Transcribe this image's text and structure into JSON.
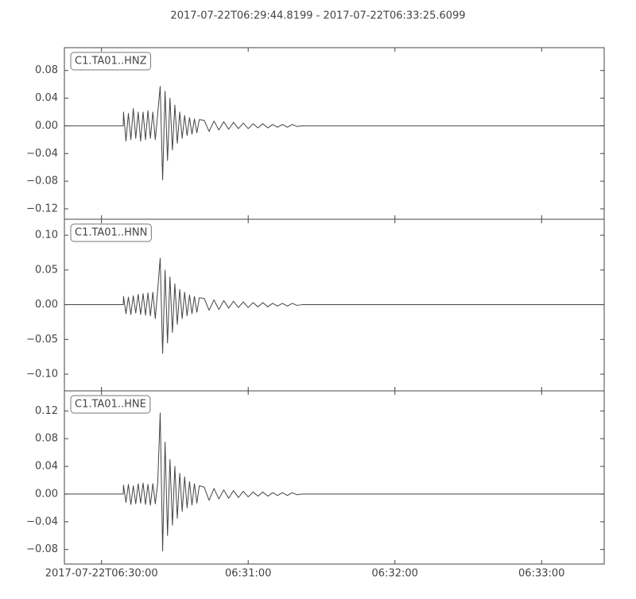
{
  "chart_data": [
    {
      "type": "line",
      "title": "2017-07-22T06:29:44.8199  -  2017-07-22T06:33:25.6099",
      "xlim": [
        "06:29:44.8199",
        "06:33:25.6099"
      ],
      "ylim": [
        -0.135,
        0.113
      ],
      "yticks": [
        {
          "value": 0.08,
          "label": "0.08"
        },
        {
          "value": 0.04,
          "label": "0.04"
        },
        {
          "value": 0,
          "label": "0.00"
        },
        {
          "value": -0.04,
          "label": "−0.04"
        },
        {
          "value": -0.08,
          "label": "−0.08"
        },
        {
          "value": -0.12,
          "label": "−0.12"
        }
      ],
      "x": [
        "06:29:44.8199",
        "06:30:08.9",
        "06:30:09",
        "06:30:10",
        "06:30:11",
        "06:30:12",
        "06:30:13",
        "06:30:14",
        "06:30:15",
        "06:30:16",
        "06:30:17",
        "06:30:18",
        "06:30:19",
        "06:30:20",
        "06:30:21",
        "06:30:22",
        "06:30:23",
        "06:30:24",
        "06:30:25",
        "06:30:26",
        "06:30:27",
        "06:30:28",
        "06:30:29",
        "06:30:30",
        "06:30:31",
        "06:30:32",
        "06:30:33",
        "06:30:34",
        "06:30:35",
        "06:30:36",
        "06:30:37",
        "06:30:38",
        "06:30:39",
        "06:30:40",
        "06:30:42",
        "06:30:44",
        "06:30:46",
        "06:30:48",
        "06:30:50",
        "06:30:52",
        "06:30:54",
        "06:30:56",
        "06:30:58",
        "06:31:00",
        "06:31:02",
        "06:31:04",
        "06:31:06",
        "06:31:08",
        "06:31:10",
        "06:31:12",
        "06:31:14",
        "06:31:16",
        "06:31:18",
        "06:31:20",
        "06:31:22",
        "06:33:25.6099"
      ],
      "series": [
        {
          "name": "C1.TA01..HNZ",
          "color": "#444444",
          "values": [
            0,
            0,
            0.02,
            -0.022,
            0.018,
            -0.02,
            0.025,
            -0.018,
            0.02,
            -0.022,
            0.02,
            -0.02,
            0.022,
            -0.018,
            0.02,
            -0.02,
            0.018,
            0.057,
            -0.078,
            0.05,
            -0.05,
            0.04,
            -0.035,
            0.03,
            -0.025,
            0.02,
            -0.018,
            0.015,
            -0.014,
            0.012,
            -0.012,
            0.01,
            -0.01,
            0.009,
            0.008,
            -0.008,
            0.007,
            -0.006,
            0.006,
            -0.005,
            0.005,
            -0.004,
            0.004,
            -0.004,
            0.003,
            -0.003,
            0.003,
            -0.003,
            0.002,
            -0.002,
            0.002,
            -0.002,
            0.002,
            -0.001,
            0,
            0
          ]
        }
      ]
    },
    {
      "type": "line",
      "xlim": [
        "06:29:44.8199",
        "06:33:25.6099"
      ],
      "ylim": [
        -0.124,
        0.123
      ],
      "yticks": [
        {
          "value": 0.1,
          "label": "0.10"
        },
        {
          "value": 0.05,
          "label": "0.05"
        },
        {
          "value": 0,
          "label": "0.00"
        },
        {
          "value": -0.05,
          "label": "−0.05"
        },
        {
          "value": -0.1,
          "label": "−0.10"
        }
      ],
      "x": [
        "06:29:44.8199",
        "06:30:08.9",
        "06:30:09",
        "06:30:10",
        "06:30:11",
        "06:30:12",
        "06:30:13",
        "06:30:14",
        "06:30:15",
        "06:30:16",
        "06:30:17",
        "06:30:18",
        "06:30:19",
        "06:30:20",
        "06:30:21",
        "06:30:22",
        "06:30:23",
        "06:30:24",
        "06:30:25",
        "06:30:26",
        "06:30:27",
        "06:30:28",
        "06:30:29",
        "06:30:30",
        "06:30:31",
        "06:30:32",
        "06:30:33",
        "06:30:34",
        "06:30:35",
        "06:30:36",
        "06:30:37",
        "06:30:38",
        "06:30:39",
        "06:30:40",
        "06:30:42",
        "06:30:44",
        "06:30:46",
        "06:30:48",
        "06:30:50",
        "06:30:52",
        "06:30:54",
        "06:30:56",
        "06:30:58",
        "06:31:00",
        "06:31:02",
        "06:31:04",
        "06:31:06",
        "06:31:08",
        "06:31:10",
        "06:31:12",
        "06:31:14",
        "06:31:16",
        "06:31:18",
        "06:31:20",
        "06:31:22",
        "06:33:25.6099"
      ],
      "series": [
        {
          "name": "C1.TA01..HNN",
          "color": "#444444",
          "values": [
            0,
            0,
            0.012,
            -0.013,
            0.011,
            -0.014,
            0.013,
            -0.012,
            0.015,
            -0.014,
            0.016,
            -0.015,
            0.017,
            -0.016,
            0.018,
            -0.02,
            0.022,
            0.067,
            -0.07,
            0.05,
            -0.055,
            0.04,
            -0.04,
            0.03,
            -0.028,
            0.022,
            -0.02,
            0.018,
            -0.016,
            0.014,
            -0.013,
            0.012,
            -0.011,
            0.01,
            0.009,
            -0.008,
            0.007,
            -0.007,
            0.006,
            -0.005,
            0.005,
            -0.004,
            0.004,
            -0.004,
            0.003,
            -0.003,
            0.003,
            -0.003,
            0.002,
            -0.002,
            0.002,
            -0.002,
            0.002,
            -0.001,
            0,
            0
          ]
        }
      ]
    },
    {
      "type": "line",
      "xlim": [
        "06:29:44.8199",
        "06:33:25.6099"
      ],
      "ylim": [
        -0.101,
        0.149
      ],
      "yticks": [
        {
          "value": 0.12,
          "label": "0.12"
        },
        {
          "value": 0.08,
          "label": "0.08"
        },
        {
          "value": 0.04,
          "label": "0.04"
        },
        {
          "value": 0,
          "label": "0.00"
        },
        {
          "value": -0.04,
          "label": "−0.04"
        },
        {
          "value": -0.08,
          "label": "−0.08"
        }
      ],
      "xticks": [
        {
          "value": "06:30:00",
          "label": "2017-07-22T06:30:00"
        },
        {
          "value": "06:31:00",
          "label": "06:31:00"
        },
        {
          "value": "06:32:00",
          "label": "06:32:00"
        },
        {
          "value": "06:33:00",
          "label": "06:33:00"
        }
      ],
      "x": [
        "06:29:44.8199",
        "06:30:08.9",
        "06:30:09",
        "06:30:10",
        "06:30:11",
        "06:30:12",
        "06:30:13",
        "06:30:14",
        "06:30:15",
        "06:30:16",
        "06:30:17",
        "06:30:18",
        "06:30:19",
        "06:30:20",
        "06:30:21",
        "06:30:22",
        "06:30:23",
        "06:30:24",
        "06:30:25",
        "06:30:26",
        "06:30:27",
        "06:30:28",
        "06:30:29",
        "06:30:30",
        "06:30:31",
        "06:30:32",
        "06:30:33",
        "06:30:34",
        "06:30:35",
        "06:30:36",
        "06:30:37",
        "06:30:38",
        "06:30:39",
        "06:30:40",
        "06:30:42",
        "06:30:44",
        "06:30:46",
        "06:30:48",
        "06:30:50",
        "06:30:52",
        "06:30:54",
        "06:30:56",
        "06:30:58",
        "06:31:00",
        "06:31:02",
        "06:31:04",
        "06:31:06",
        "06:31:08",
        "06:31:10",
        "06:31:12",
        "06:31:14",
        "06:31:16",
        "06:31:18",
        "06:31:20",
        "06:31:22",
        "06:33:25.6099"
      ],
      "series": [
        {
          "name": "C1.TA01..HNE",
          "color": "#444444",
          "values": [
            0,
            0,
            0.013,
            -0.012,
            0.014,
            -0.015,
            0.012,
            -0.014,
            0.015,
            -0.013,
            0.016,
            -0.015,
            0.014,
            -0.016,
            0.015,
            -0.014,
            0.016,
            0.117,
            -0.082,
            0.075,
            -0.06,
            0.05,
            -0.045,
            0.04,
            -0.035,
            0.03,
            -0.025,
            0.025,
            -0.02,
            0.018,
            -0.016,
            0.015,
            -0.013,
            0.012,
            0.01,
            -0.009,
            0.008,
            -0.007,
            0.006,
            -0.006,
            0.005,
            -0.005,
            0.004,
            -0.004,
            0.003,
            -0.003,
            0.003,
            -0.003,
            0.002,
            -0.002,
            0.002,
            -0.002,
            0.002,
            -0.001,
            0,
            0
          ]
        }
      ]
    }
  ]
}
